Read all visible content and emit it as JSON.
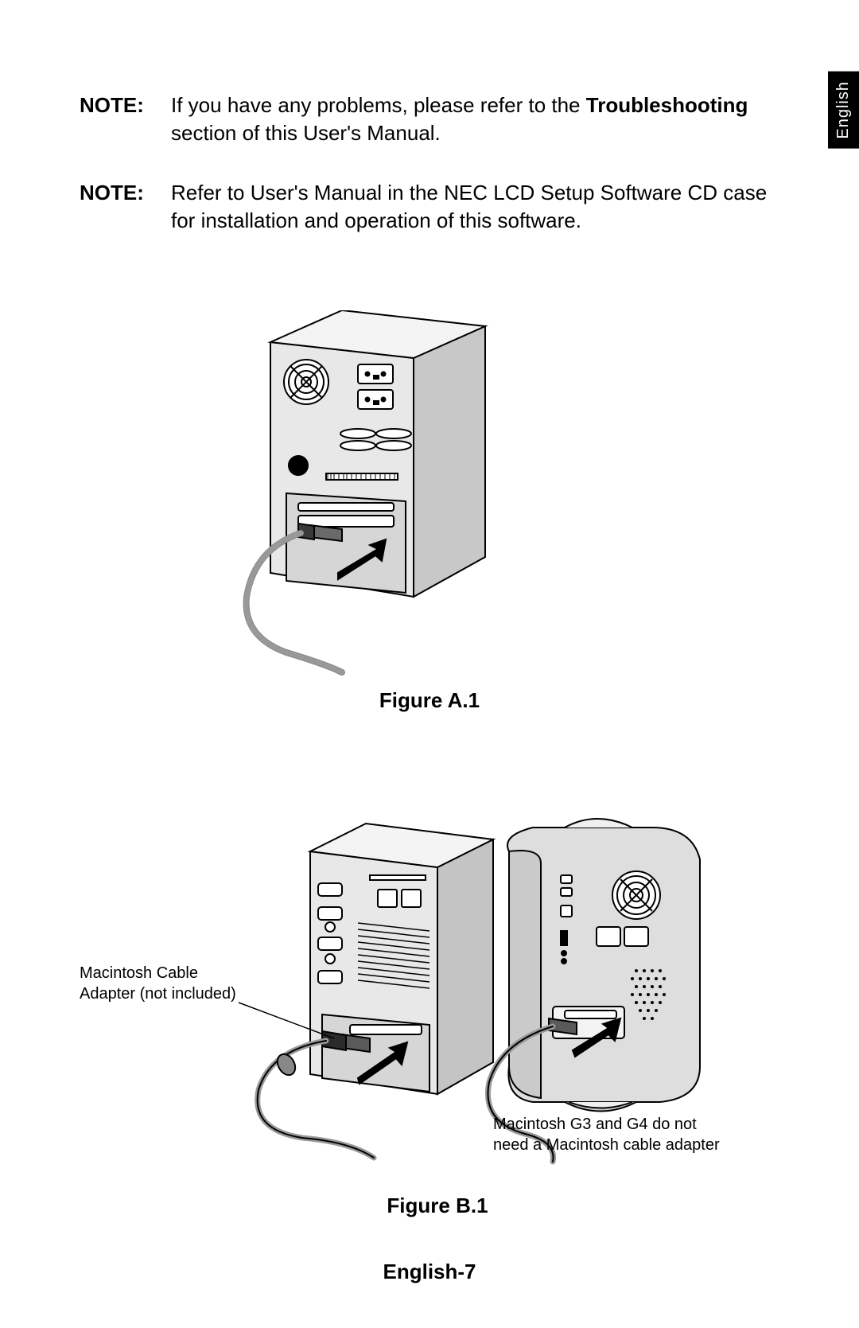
{
  "language_tab": "English",
  "notes": [
    {
      "label": "NOTE:",
      "text_pre": "If you have any problems, please refer to the ",
      "text_bold": "Troubleshooting",
      "text_post": " section of this User's Manual."
    },
    {
      "label": "NOTE:",
      "text_pre": "Refer to User's Manual in the NEC LCD Setup Software CD case for installation and operation of this software.",
      "text_bold": "",
      "text_post": ""
    }
  ],
  "figure_a": {
    "caption": "Figure A.1",
    "colors": {
      "stroke": "#000000",
      "fill_light": "#e8e8e8",
      "fill_panel": "#d6d6d6",
      "fill_dark": "#9a9a9a",
      "fill_black": "#000000",
      "cable": "#888888"
    }
  },
  "figure_b": {
    "caption": "Figure B.1",
    "callout_left": "Macintosh Cable\nAdapter (not included)",
    "callout_right": "Macintosh G3 and G4 do not\nneed a Macintosh cable adapter",
    "colors": {
      "stroke": "#000000",
      "fill_light": "#e8e8e8",
      "fill_panel": "#d6d6d6",
      "fill_mid": "#c4c4c4",
      "fill_dark": "#9a9a9a",
      "fill_black": "#000000",
      "cable": "#888888"
    }
  },
  "page_number": "English-7"
}
